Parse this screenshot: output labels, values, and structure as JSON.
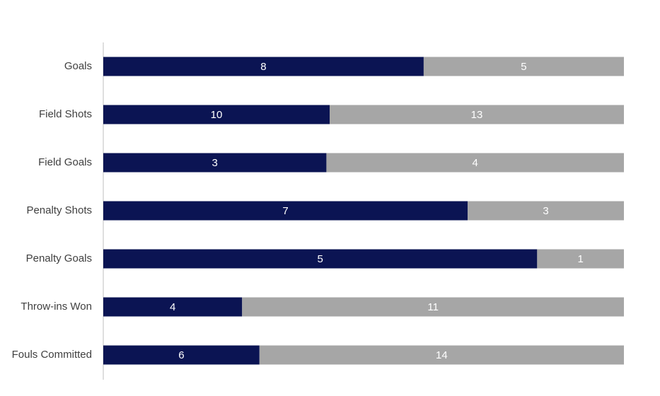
{
  "chart_data": {
    "type": "bar",
    "orientation": "horizontal",
    "stacking": "percent",
    "categories": [
      "Goals",
      "Field Shots",
      "Field Goals",
      "Penalty Shots",
      "Penalty Goals",
      "Throw-ins Won",
      "Fouls Committed"
    ],
    "series": [
      {
        "color": "#0b1453",
        "values": [
          8,
          10,
          3,
          7,
          5,
          4,
          6
        ]
      },
      {
        "color": "#a6a6a6",
        "values": [
          5,
          13,
          4,
          3,
          1,
          11,
          14
        ]
      }
    ],
    "data_labels": true
  }
}
